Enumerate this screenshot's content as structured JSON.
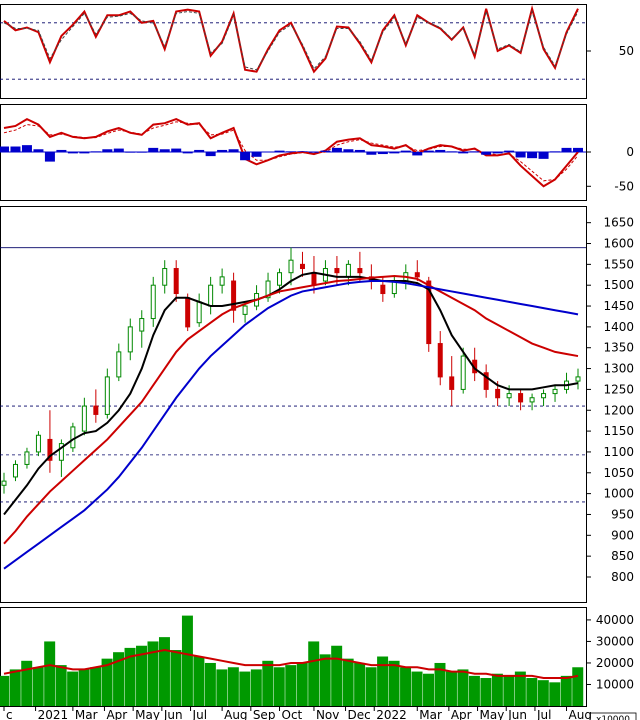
{
  "chart_data": [
    {
      "panel": "stochastic",
      "type": "line",
      "ylim": [
        0,
        100
      ],
      "y_ticks": [
        50
      ],
      "reference_lines": [
        20,
        80
      ],
      "x": [
        0,
        2,
        4,
        6,
        8,
        10,
        12,
        14,
        16,
        18,
        20,
        22,
        24,
        26,
        28,
        30,
        32,
        34,
        36,
        38,
        40,
        42,
        44,
        46,
        48,
        50,
        52,
        54,
        56,
        58,
        60,
        62,
        64,
        66,
        68,
        70,
        72,
        74,
        76,
        78,
        80,
        82,
        84,
        86,
        88,
        90,
        92,
        94,
        96,
        98,
        100
      ],
      "series": [
        {
          "color": "#cc0000",
          "values": [
            82,
            72,
            75,
            70,
            38,
            66,
            78,
            92,
            65,
            88,
            88,
            92,
            80,
            82,
            52,
            92,
            94,
            92,
            45,
            60,
            90,
            30,
            28,
            52,
            72,
            80,
            55,
            28,
            42,
            76,
            75,
            58,
            38,
            72,
            88,
            56,
            88,
            80,
            74,
            62,
            75,
            44,
            95,
            50,
            56,
            48,
            95,
            52,
            32,
            70,
            95
          ]
        },
        {
          "color": "#444444",
          "values": [
            80,
            74,
            74,
            72,
            42,
            62,
            76,
            90,
            68,
            86,
            87,
            90,
            82,
            80,
            55,
            90,
            92,
            90,
            48,
            58,
            88,
            33,
            30,
            50,
            70,
            78,
            57,
            31,
            44,
            74,
            74,
            60,
            40,
            70,
            86,
            58,
            86,
            80,
            75,
            63,
            74,
            46,
            92,
            52,
            57,
            49,
            92,
            54,
            34,
            68,
            92
          ]
        }
      ]
    },
    {
      "panel": "macd",
      "type": "line",
      "ylim": [
        -70,
        70
      ],
      "y_ticks": [
        0,
        -50
      ],
      "reference_lines": [
        0
      ],
      "x": [
        0,
        2,
        4,
        6,
        8,
        10,
        12,
        14,
        16,
        18,
        20,
        22,
        24,
        26,
        28,
        30,
        32,
        34,
        36,
        38,
        40,
        42,
        44,
        46,
        48,
        50,
        52,
        54,
        56,
        58,
        60,
        62,
        64,
        66,
        68,
        70,
        72,
        74,
        76,
        78,
        80,
        82,
        84,
        86,
        88,
        90,
        92,
        94,
        96,
        98,
        100
      ],
      "series": [
        {
          "color": "#cc0000",
          "values": [
            35,
            38,
            48,
            40,
            22,
            28,
            22,
            20,
            22,
            30,
            35,
            28,
            25,
            40,
            42,
            48,
            40,
            42,
            20,
            28,
            35,
            -10,
            -18,
            -12,
            -5,
            -2,
            0,
            -3,
            2,
            15,
            18,
            20,
            10,
            8,
            5,
            10,
            -2,
            5,
            10,
            8,
            2,
            5,
            -5,
            -5,
            -2,
            -20,
            -35,
            -50,
            -40,
            -20,
            0
          ]
        },
        {
          "color": "#cc0000",
          "values": [
            28,
            32,
            40,
            38,
            25,
            26,
            23,
            21,
            21,
            27,
            32,
            29,
            26,
            35,
            39,
            44,
            42,
            40,
            25,
            26,
            32,
            2,
            -12,
            -12,
            -7,
            -3,
            -1,
            -2,
            0,
            10,
            15,
            18,
            13,
            10,
            7,
            9,
            2,
            4,
            8,
            8,
            4,
            4,
            -2,
            -4,
            -3,
            -14,
            -28,
            -42,
            -40,
            -25,
            -5
          ]
        },
        {
          "color": "#0000cc",
          "values": [
            8,
            8,
            10,
            4,
            -14,
            3,
            -2,
            -2,
            1,
            4,
            5,
            -1,
            -1,
            6,
            4,
            5,
            -2,
            3,
            -6,
            3,
            4,
            -12,
            -7,
            0,
            2,
            1,
            1,
            -1,
            2,
            6,
            4,
            3,
            -4,
            -3,
            -2,
            2,
            -5,
            2,
            3,
            1,
            -2,
            1,
            -4,
            -2,
            2,
            -8,
            -9,
            -10,
            1,
            6,
            6
          ]
        }
      ]
    },
    {
      "panel": "price",
      "type": "candlestick",
      "ylim": [
        740,
        1690
      ],
      "y_ticks": [
        1650,
        1600,
        1550,
        1500,
        1450,
        1400,
        1350,
        1300,
        1250,
        1200,
        1150,
        1100,
        1050,
        1000,
        950,
        900,
        850,
        800
      ],
      "reference_lines": [
        1590,
        1210,
        1093,
        980
      ],
      "x": [
        0,
        2,
        4,
        6,
        8,
        10,
        12,
        14,
        16,
        18,
        20,
        22,
        24,
        26,
        28,
        30,
        32,
        34,
        36,
        38,
        40,
        42,
        44,
        46,
        48,
        50,
        52,
        54,
        56,
        58,
        60,
        62,
        64,
        66,
        68,
        70,
        72,
        74,
        76,
        78,
        80,
        82,
        84,
        86,
        88,
        90,
        92,
        94,
        96,
        98,
        100
      ],
      "ohlc": [
        [
          1020,
          1050,
          1000,
          1030
        ],
        [
          1040,
          1080,
          1030,
          1070
        ],
        [
          1070,
          1110,
          1060,
          1100
        ],
        [
          1100,
          1150,
          1090,
          1140
        ],
        [
          1130,
          1200,
          1050,
          1080
        ],
        [
          1080,
          1130,
          1040,
          1120
        ],
        [
          1110,
          1170,
          1100,
          1160
        ],
        [
          1150,
          1230,
          1140,
          1210
        ],
        [
          1210,
          1250,
          1170,
          1190
        ],
        [
          1190,
          1300,
          1180,
          1280
        ],
        [
          1280,
          1360,
          1270,
          1340
        ],
        [
          1340,
          1420,
          1320,
          1400
        ],
        [
          1390,
          1440,
          1350,
          1420
        ],
        [
          1420,
          1520,
          1400,
          1500
        ],
        [
          1500,
          1560,
          1480,
          1540
        ],
        [
          1540,
          1560,
          1460,
          1480
        ],
        [
          1470,
          1480,
          1390,
          1400
        ],
        [
          1410,
          1480,
          1400,
          1460
        ],
        [
          1450,
          1520,
          1430,
          1500
        ],
        [
          1500,
          1540,
          1480,
          1520
        ],
        [
          1510,
          1530,
          1410,
          1440
        ],
        [
          1430,
          1460,
          1410,
          1450
        ],
        [
          1450,
          1500,
          1440,
          1480
        ],
        [
          1470,
          1530,
          1460,
          1510
        ],
        [
          1500,
          1540,
          1480,
          1530
        ],
        [
          1530,
          1590,
          1500,
          1560
        ],
        [
          1550,
          1580,
          1520,
          1540
        ],
        [
          1530,
          1570,
          1480,
          1500
        ],
        [
          1510,
          1560,
          1500,
          1540
        ],
        [
          1540,
          1570,
          1500,
          1530
        ],
        [
          1520,
          1560,
          1500,
          1550
        ],
        [
          1540,
          1580,
          1510,
          1530
        ],
        [
          1520,
          1550,
          1490,
          1510
        ],
        [
          1500,
          1520,
          1460,
          1480
        ],
        [
          1480,
          1520,
          1470,
          1510
        ],
        [
          1510,
          1550,
          1490,
          1530
        ],
        [
          1530,
          1560,
          1510,
          1520
        ],
        [
          1510,
          1520,
          1340,
          1360
        ],
        [
          1360,
          1390,
          1260,
          1280
        ],
        [
          1280,
          1330,
          1210,
          1250
        ],
        [
          1250,
          1350,
          1240,
          1330
        ],
        [
          1320,
          1350,
          1270,
          1290
        ],
        [
          1290,
          1310,
          1230,
          1250
        ],
        [
          1250,
          1270,
          1210,
          1230
        ],
        [
          1230,
          1260,
          1210,
          1240
        ],
        [
          1240,
          1250,
          1200,
          1220
        ],
        [
          1220,
          1240,
          1200,
          1230
        ],
        [
          1230,
          1250,
          1210,
          1240
        ],
        [
          1240,
          1260,
          1220,
          1250
        ],
        [
          1250,
          1290,
          1240,
          1270
        ],
        [
          1270,
          1300,
          1250,
          1280
        ]
      ],
      "series": [
        {
          "color": "#000000",
          "values": [
            950,
            985,
            1020,
            1060,
            1090,
            1110,
            1130,
            1145,
            1150,
            1170,
            1200,
            1240,
            1300,
            1380,
            1440,
            1470,
            1470,
            1460,
            1450,
            1450,
            1455,
            1460,
            1465,
            1475,
            1490,
            1510,
            1525,
            1530,
            1525,
            1520,
            1520,
            1520,
            1515,
            1510,
            1510,
            1510,
            1505,
            1490,
            1440,
            1380,
            1340,
            1300,
            1280,
            1260,
            1250,
            1250,
            1250,
            1255,
            1260,
            1260,
            1265
          ]
        },
        {
          "color": "#cc0000",
          "values": [
            880,
            910,
            945,
            975,
            1005,
            1030,
            1055,
            1080,
            1105,
            1130,
            1160,
            1190,
            1220,
            1260,
            1300,
            1340,
            1370,
            1390,
            1410,
            1430,
            1445,
            1455,
            1465,
            1475,
            1485,
            1490,
            1495,
            1500,
            1505,
            1510,
            1512,
            1515,
            1518,
            1520,
            1522,
            1520,
            1515,
            1500,
            1485,
            1470,
            1455,
            1440,
            1420,
            1405,
            1390,
            1375,
            1360,
            1350,
            1340,
            1335,
            1330
          ]
        },
        {
          "color": "#0000cc",
          "values": [
            820,
            840,
            860,
            880,
            900,
            920,
            940,
            960,
            985,
            1010,
            1040,
            1075,
            1110,
            1150,
            1190,
            1230,
            1265,
            1300,
            1330,
            1355,
            1380,
            1405,
            1425,
            1445,
            1460,
            1475,
            1485,
            1490,
            1495,
            1500,
            1505,
            1508,
            1510,
            1510,
            1508,
            1505,
            1500,
            1495,
            1490,
            1485,
            1480,
            1475,
            1470,
            1465,
            1460,
            1455,
            1450,
            1445,
            1440,
            1435,
            1430
          ]
        }
      ]
    },
    {
      "panel": "volume",
      "type": "bar",
      "ylim": [
        0,
        46000
      ],
      "y_ticks": [
        40000,
        30000,
        20000,
        10000
      ],
      "unit_label": "x10000",
      "x": [
        0,
        2,
        4,
        6,
        8,
        10,
        12,
        14,
        16,
        18,
        20,
        22,
        24,
        26,
        28,
        30,
        32,
        34,
        36,
        38,
        40,
        42,
        44,
        46,
        48,
        50,
        52,
        54,
        56,
        58,
        60,
        62,
        64,
        66,
        68,
        70,
        72,
        74,
        76,
        78,
        80,
        82,
        84,
        86,
        88,
        90,
        92,
        94,
        96,
        98,
        100
      ],
      "values": [
        14000,
        17000,
        21000,
        18000,
        30000,
        19000,
        16000,
        17000,
        18000,
        22000,
        25000,
        27000,
        28000,
        30000,
        32000,
        26000,
        42000,
        23000,
        20000,
        17000,
        18000,
        16000,
        17000,
        21000,
        18000,
        19000,
        20000,
        30000,
        24000,
        28000,
        22000,
        20000,
        18000,
        23000,
        21000,
        18000,
        16000,
        15000,
        20000,
        16000,
        17000,
        14000,
        13000,
        15000,
        14000,
        16000,
        13000,
        12000,
        11000,
        14000,
        18000
      ],
      "series": [
        {
          "color": "#cc0000",
          "values": [
            15000,
            16000,
            17000,
            18000,
            19000,
            18000,
            17000,
            17000,
            18000,
            19000,
            21000,
            23000,
            24000,
            25000,
            26000,
            25000,
            24000,
            23000,
            22000,
            21000,
            20000,
            19000,
            19000,
            19000,
            19000,
            20000,
            20000,
            21000,
            22000,
            22000,
            21000,
            20000,
            19000,
            19000,
            19000,
            18000,
            18000,
            17000,
            17000,
            16000,
            16000,
            15000,
            15000,
            14000,
            14000,
            14000,
            14000,
            13000,
            13000,
            13000,
            14000
          ]
        }
      ]
    }
  ],
  "x_axis": {
    "labels": [
      "c",
      "2021",
      "Mar",
      "Apr",
      "May",
      "Jun",
      "Jul",
      "Aug",
      "Sep",
      "Oct",
      "Nov",
      "Dec",
      "2022",
      "Mar",
      "Apr",
      "May",
      "Jun",
      "Jul",
      "Aug"
    ],
    "positions": [
      0,
      5.5,
      12,
      17.5,
      22.5,
      27.5,
      32.5,
      38,
      43,
      48,
      54,
      59.5,
      64.5,
      72,
      77.5,
      82.5,
      87.5,
      92.5,
      98
    ]
  }
}
